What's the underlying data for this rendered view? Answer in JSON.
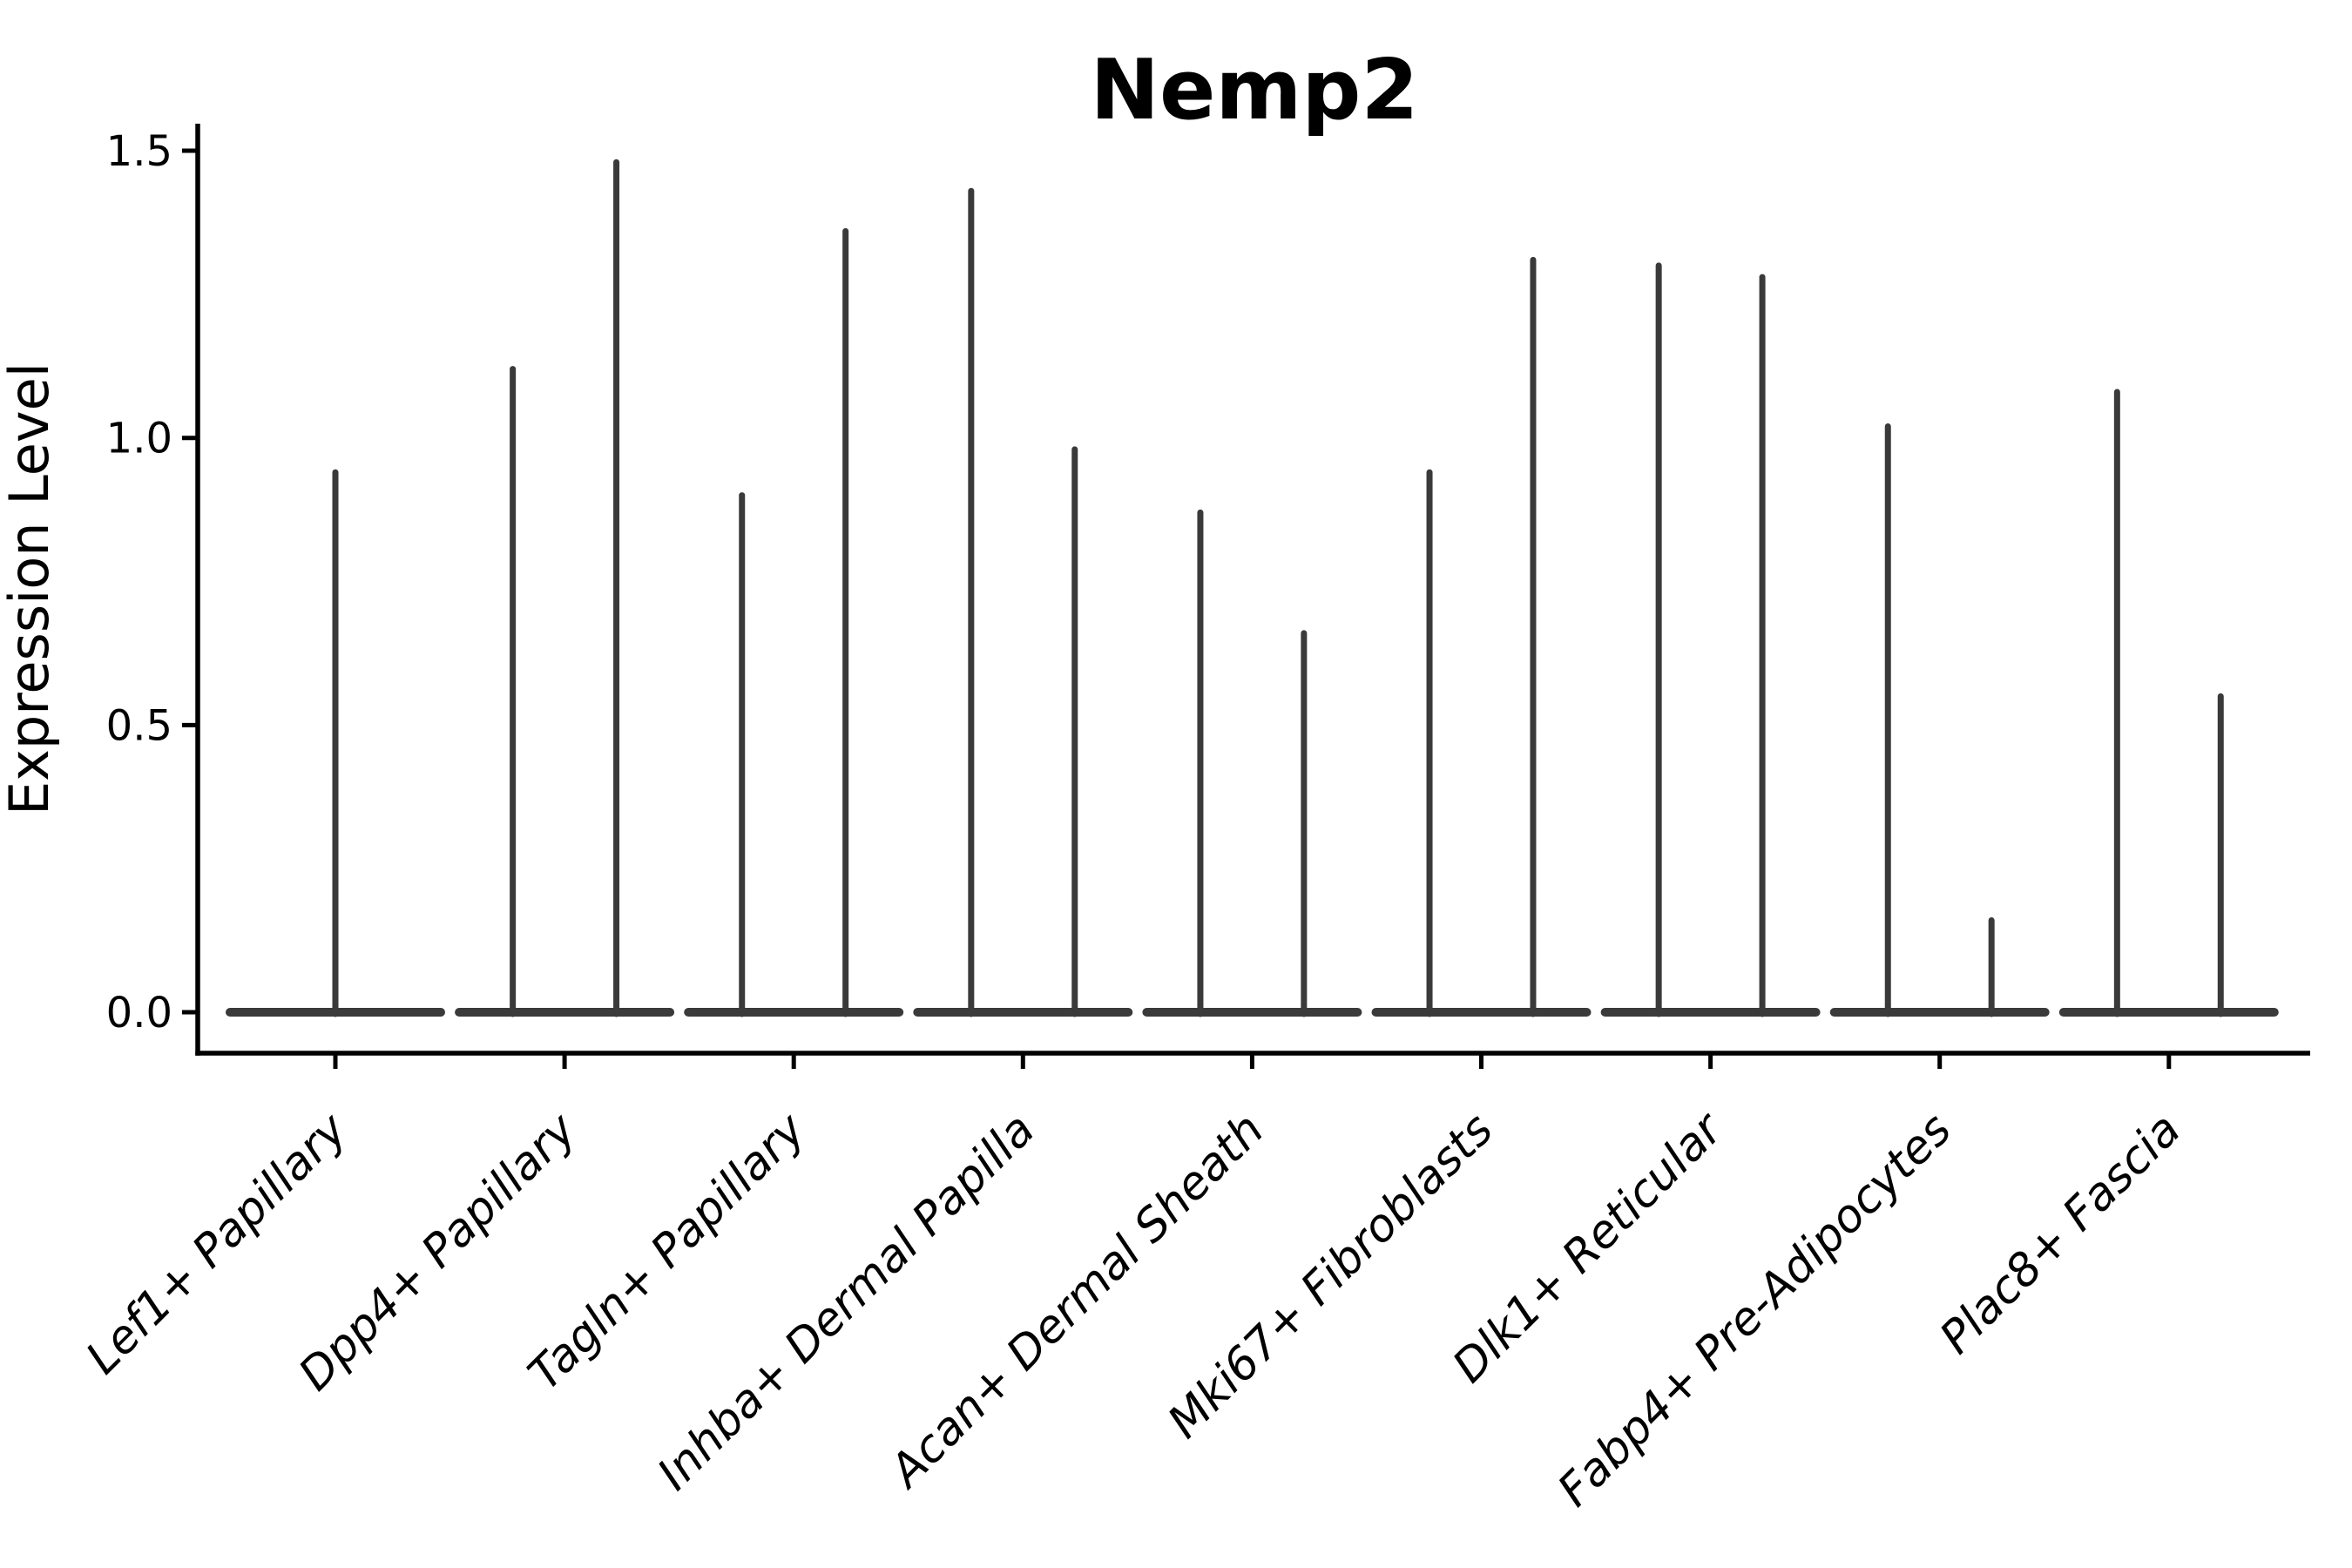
{
  "figure": {
    "title": "Nemp2",
    "y_axis_label": "Expression Level"
  },
  "chart_data": {
    "type": "violin",
    "title": "Nemp2",
    "xlabel": "",
    "ylabel": "Expression Level",
    "ylim": [
      0,
      1.55
    ],
    "yticks": [
      0.0,
      0.5,
      1.0,
      1.5
    ],
    "ytick_labels": [
      "0.0",
      "0.5",
      "1.0",
      "1.5"
    ],
    "grid": false,
    "legend": "none",
    "baseline_value": 0.0,
    "categories": [
      "Lef1+ Papillary",
      "Dpp4+ Papillary",
      "Tagln+ Papillary",
      "Inhba+ Dermal Papilla",
      "Acan+ Dermal Sheath",
      "Mki67+ Fibroblasts",
      "Dlk1+ Reticular",
      "Fabp4+ Pre-Adipocytes",
      "Plac8+ Fascia"
    ],
    "violins": [
      {
        "category": "Lef1+ Papillary",
        "spikes": [
          {
            "offset": 0.0,
            "max": 0.94
          }
        ]
      },
      {
        "category": "Dpp4+ Papillary",
        "spikes": [
          {
            "offset": -0.226,
            "max": 1.12
          },
          {
            "offset": 0.226,
            "max": 1.48
          }
        ]
      },
      {
        "category": "Tagln+ Papillary",
        "spikes": [
          {
            "offset": -0.226,
            "max": 0.9
          },
          {
            "offset": 0.226,
            "max": 1.36
          }
        ]
      },
      {
        "category": "Inhba+ Dermal Papilla",
        "spikes": [
          {
            "offset": -0.226,
            "max": 1.43
          },
          {
            "offset": 0.226,
            "max": 0.98
          }
        ]
      },
      {
        "category": "Acan+ Dermal Sheath",
        "spikes": [
          {
            "offset": -0.226,
            "max": 0.87
          },
          {
            "offset": 0.226,
            "max": 0.66
          }
        ]
      },
      {
        "category": "Mki67+ Fibroblasts",
        "spikes": [
          {
            "offset": -0.226,
            "max": 0.94
          },
          {
            "offset": 0.226,
            "max": 1.31
          }
        ]
      },
      {
        "category": "Dlk1+ Reticular",
        "spikes": [
          {
            "offset": -0.226,
            "max": 1.3
          },
          {
            "offset": 0.226,
            "max": 1.28
          }
        ]
      },
      {
        "category": "Fabp4+ Pre-Adipocytes",
        "spikes": [
          {
            "offset": -0.226,
            "max": 1.02
          },
          {
            "offset": 0.226,
            "max": 0.16
          }
        ]
      },
      {
        "category": "Plac8+ Fascia",
        "spikes": [
          {
            "offset": -0.226,
            "max": 1.08
          },
          {
            "offset": 0.226,
            "max": 0.55
          }
        ]
      }
    ],
    "colors": {
      "violin": "#3a3a3a",
      "axis": "#000000",
      "background": "#ffffff"
    }
  }
}
